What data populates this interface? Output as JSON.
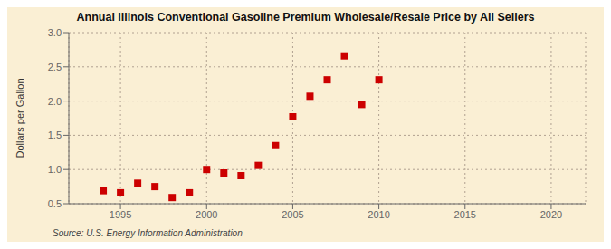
{
  "chart_data": {
    "type": "scatter",
    "title": "Annual Illinois Conventional Gasoline Premium Wholesale/Resale Price by All Sellers",
    "y_label": "Dollars per Gallon",
    "annotations": [
      "Source: U.S. Energy Information Administration"
    ],
    "x": [
      1994,
      1995,
      1996,
      1997,
      1998,
      1999,
      2000,
      2001,
      2002,
      2003,
      2004,
      2005,
      2006,
      2007,
      2008,
      2009,
      2010
    ],
    "values": [
      0.69,
      0.66,
      0.8,
      0.75,
      0.59,
      0.66,
      1.0,
      0.95,
      0.91,
      1.06,
      1.35,
      1.77,
      2.07,
      2.31,
      2.66,
      1.95,
      2.31
    ],
    "color": "#cc0000",
    "marker": "square",
    "xlim": [
      1992,
      2022
    ],
    "xticks": [
      1995,
      2000,
      2005,
      2010,
      2015,
      2020
    ],
    "ylim": [
      0.5,
      3.0
    ],
    "yticks": [
      0.5,
      {
        "value": 1.0,
        "label": "1.0"
      },
      1.5,
      {
        "value": 2.0,
        "label": "2.0"
      },
      2.5,
      {
        "value": 3.0,
        "label": "3.0"
      }
    ],
    "grid": true
  }
}
